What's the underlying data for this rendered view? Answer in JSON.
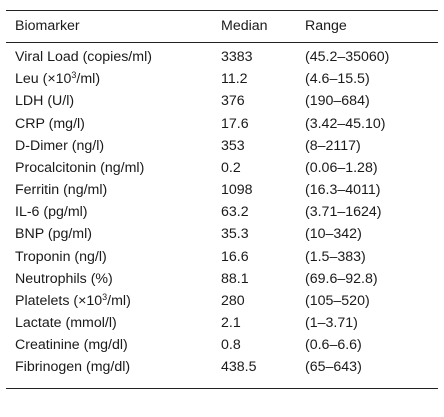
{
  "table": {
    "headers": {
      "biomarker": "Biomarker",
      "median": "Median",
      "range": "Range"
    },
    "rows": [
      {
        "biomarker": "Viral Load (copies/ml)",
        "median": "3383",
        "range": "(45.2–35060)"
      },
      {
        "biomarker_pre": "Leu (×10",
        "biomarker_sup": "3",
        "biomarker_post": "/ml)",
        "median": "11.2",
        "range": "(4.6–15.5)"
      },
      {
        "biomarker": "LDH (U/l)",
        "median": "376",
        "range": "(190–684)"
      },
      {
        "biomarker": "CRP (mg/l)",
        "median": "17.6",
        "range": "(3.42–45.10)"
      },
      {
        "biomarker": "D-Dimer (ng/l)",
        "median": "353",
        "range": "(8–2117)"
      },
      {
        "biomarker": "Procalcitonin (ng/ml)",
        "median": "0.2",
        "range": "(0.06–1.28)"
      },
      {
        "biomarker": "Ferritin (ng/ml)",
        "median": "1098",
        "range": "(16.3–4011)"
      },
      {
        "biomarker": "IL-6 (pg/ml)",
        "median": "63.2",
        "range": "(3.71–1624)"
      },
      {
        "biomarker": "BNP (pg/ml)",
        "median": "35.3",
        "range": "(10–342)"
      },
      {
        "biomarker": "Troponin (ng/l)",
        "median": "16.6",
        "range": "(1.5–383)"
      },
      {
        "biomarker": "Neutrophils (%)",
        "median": "88.1",
        "range": "(69.6–92.8)"
      },
      {
        "biomarker_pre": "Platelets (×10",
        "biomarker_sup": "3",
        "biomarker_post": "/ml)",
        "median": "280",
        "range": "(105–520)"
      },
      {
        "biomarker": "Lactate (mmol/l)",
        "median": "2.1",
        "range": "(1–3.71)"
      },
      {
        "biomarker": "Creatinine (mg/dl)",
        "median": "0.8",
        "range": "(0.6–6.6)"
      },
      {
        "biomarker": "Fibrinogen (mg/dl)",
        "median": "438.5",
        "range": "(65–643)"
      }
    ]
  }
}
